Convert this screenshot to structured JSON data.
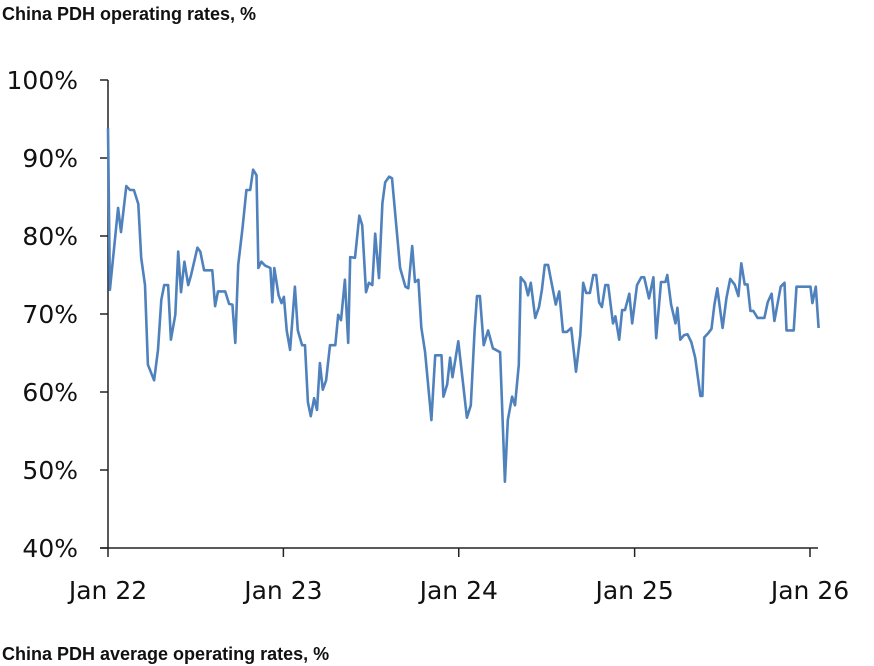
{
  "title": "China PDH operating rates, %",
  "footer_title": "China PDH average operating rates, %",
  "chart_data": {
    "type": "line",
    "title": "China PDH operating rates, %",
    "xlabel": "",
    "ylabel": "",
    "ylim": [
      40,
      100
    ],
    "xlim": [
      "2022-01-01",
      "2026-01-01"
    ],
    "y_ticks": [
      "40%",
      "50%",
      "60%",
      "70%",
      "80%",
      "90%",
      "100%"
    ],
    "y_tick_values": [
      40,
      50,
      60,
      70,
      80,
      90,
      100
    ],
    "x_ticks": [
      "Jan 22",
      "Jan 23",
      "Jan 24",
      "Jan 25",
      "Jan 26"
    ],
    "x_tick_dates": [
      "2022-01-01",
      "2023-01-01",
      "2024-01-01",
      "2025-01-01",
      "2026-01-01"
    ],
    "grid": false,
    "legend": "none",
    "color": "#4f81bd",
    "series": [
      {
        "points": [
          [
            "2022-01-01",
            93.8
          ],
          [
            "2022-01-05",
            73.1
          ],
          [
            "2022-01-22",
            83.6
          ],
          [
            "2022-01-28",
            80.5
          ],
          [
            "2022-02-08",
            86.4
          ],
          [
            "2022-02-16",
            85.9
          ],
          [
            "2022-02-24",
            85.9
          ],
          [
            "2022-03-05",
            84.1
          ],
          [
            "2022-03-11",
            77.2
          ],
          [
            "2022-03-19",
            73.7
          ],
          [
            "2022-03-25",
            63.5
          ],
          [
            "2022-04-07",
            61.5
          ],
          [
            "2022-04-15",
            65.4
          ],
          [
            "2022-04-22",
            71.8
          ],
          [
            "2022-04-28",
            73.7
          ],
          [
            "2022-05-06",
            73.7
          ],
          [
            "2022-05-12",
            66.7
          ],
          [
            "2022-05-21",
            69.9
          ],
          [
            "2022-05-27",
            78.0
          ],
          [
            "2022-06-02",
            72.8
          ],
          [
            "2022-06-09",
            76.7
          ],
          [
            "2022-06-17",
            73.7
          ],
          [
            "2022-06-23",
            75.0
          ],
          [
            "2022-07-06",
            78.5
          ],
          [
            "2022-07-12",
            78.0
          ],
          [
            "2022-07-20",
            75.6
          ],
          [
            "2022-08-06",
            75.6
          ],
          [
            "2022-08-12",
            71.0
          ],
          [
            "2022-08-18",
            72.9
          ],
          [
            "2022-09-02",
            72.9
          ],
          [
            "2022-09-10",
            71.3
          ],
          [
            "2022-09-17",
            71.2
          ],
          [
            "2022-09-23",
            66.3
          ],
          [
            "2022-09-29",
            76.3
          ],
          [
            "2022-10-08",
            81.0
          ],
          [
            "2022-10-16",
            85.9
          ],
          [
            "2022-10-24",
            85.9
          ],
          [
            "2022-10-30",
            88.5
          ],
          [
            "2022-11-06",
            87.8
          ],
          [
            "2022-11-10",
            75.9
          ],
          [
            "2022-11-16",
            76.7
          ],
          [
            "2022-11-24",
            76.2
          ],
          [
            "2022-12-05",
            75.9
          ],
          [
            "2022-12-09",
            71.5
          ],
          [
            "2022-12-13",
            75.9
          ],
          [
            "2022-12-22",
            72.4
          ],
          [
            "2022-12-28",
            71.4
          ],
          [
            "2023-01-02",
            72.2
          ],
          [
            "2023-01-08",
            67.9
          ],
          [
            "2023-01-15",
            65.4
          ],
          [
            "2023-01-25",
            73.5
          ],
          [
            "2023-01-31",
            67.9
          ],
          [
            "2023-02-09",
            66.0
          ],
          [
            "2023-02-15",
            66.0
          ],
          [
            "2023-02-21",
            58.7
          ],
          [
            "2023-02-27",
            56.9
          ],
          [
            "2023-03-06",
            59.2
          ],
          [
            "2023-03-12",
            57.7
          ],
          [
            "2023-03-18",
            63.7
          ],
          [
            "2023-03-24",
            60.3
          ],
          [
            "2023-03-31",
            61.5
          ],
          [
            "2023-04-08",
            66.0
          ],
          [
            "2023-04-19",
            66.0
          ],
          [
            "2023-04-25",
            69.9
          ],
          [
            "2023-05-01",
            69.2
          ],
          [
            "2023-05-09",
            74.4
          ],
          [
            "2023-05-16",
            66.3
          ],
          [
            "2023-05-20",
            77.3
          ],
          [
            "2023-05-30",
            77.2
          ],
          [
            "2023-06-08",
            82.6
          ],
          [
            "2023-06-14",
            81.4
          ],
          [
            "2023-06-22",
            72.8
          ],
          [
            "2023-06-28",
            74.0
          ],
          [
            "2023-07-05",
            73.7
          ],
          [
            "2023-07-11",
            80.3
          ],
          [
            "2023-07-19",
            74.6
          ],
          [
            "2023-07-26",
            84.2
          ],
          [
            "2023-08-01",
            86.9
          ],
          [
            "2023-08-09",
            87.6
          ],
          [
            "2023-08-15",
            87.4
          ],
          [
            "2023-08-20",
            84.0
          ],
          [
            "2023-08-28",
            78.6
          ],
          [
            "2023-09-01",
            75.9
          ],
          [
            "2023-09-12",
            73.5
          ],
          [
            "2023-09-18",
            73.3
          ],
          [
            "2023-09-26",
            78.7
          ],
          [
            "2023-10-02",
            74.1
          ],
          [
            "2023-10-09",
            74.4
          ],
          [
            "2023-10-15",
            68.3
          ],
          [
            "2023-10-23",
            65.1
          ],
          [
            "2023-11-05",
            56.4
          ],
          [
            "2023-11-13",
            64.7
          ],
          [
            "2023-11-26",
            64.7
          ],
          [
            "2023-11-30",
            59.4
          ],
          [
            "2023-12-08",
            61.0
          ],
          [
            "2023-12-14",
            64.4
          ],
          [
            "2023-12-19",
            61.9
          ],
          [
            "2023-12-31",
            66.5
          ],
          [
            "2024-01-18",
            56.7
          ],
          [
            "2024-01-26",
            58.3
          ],
          [
            "2024-02-03",
            67.9
          ],
          [
            "2024-02-08",
            72.3
          ],
          [
            "2024-02-14",
            72.3
          ],
          [
            "2024-02-22",
            66.0
          ],
          [
            "2024-03-02",
            67.9
          ],
          [
            "2024-03-12",
            65.6
          ],
          [
            "2024-03-27",
            65.1
          ],
          [
            "2024-04-06",
            48.5
          ],
          [
            "2024-04-12",
            56.4
          ],
          [
            "2024-04-21",
            59.4
          ],
          [
            "2024-04-27",
            58.3
          ],
          [
            "2024-05-05",
            63.5
          ],
          [
            "2024-05-09",
            74.7
          ],
          [
            "2024-05-18",
            74.0
          ],
          [
            "2024-05-24",
            72.4
          ],
          [
            "2024-05-30",
            74.0
          ],
          [
            "2024-06-08",
            69.5
          ],
          [
            "2024-06-16",
            70.9
          ],
          [
            "2024-06-22",
            73.1
          ],
          [
            "2024-06-28",
            76.3
          ],
          [
            "2024-07-05",
            76.3
          ],
          [
            "2024-07-13",
            73.7
          ],
          [
            "2024-07-21",
            71.2
          ],
          [
            "2024-07-28",
            72.9
          ],
          [
            "2024-08-05",
            67.7
          ],
          [
            "2024-08-13",
            67.7
          ],
          [
            "2024-08-22",
            68.2
          ],
          [
            "2024-09-01",
            62.6
          ],
          [
            "2024-09-10",
            67.3
          ],
          [
            "2024-09-16",
            74.0
          ],
          [
            "2024-09-22",
            72.7
          ],
          [
            "2024-09-30",
            72.7
          ],
          [
            "2024-10-07",
            75.0
          ],
          [
            "2024-10-13",
            75.0
          ],
          [
            "2024-10-19",
            71.5
          ],
          [
            "2024-10-25",
            70.9
          ],
          [
            "2024-11-01",
            73.7
          ],
          [
            "2024-11-07",
            73.7
          ],
          [
            "2024-11-17",
            68.8
          ],
          [
            "2024-11-22",
            69.7
          ],
          [
            "2024-11-30",
            66.7
          ],
          [
            "2024-12-06",
            70.5
          ],
          [
            "2024-12-12",
            70.5
          ],
          [
            "2024-12-21",
            72.6
          ],
          [
            "2024-12-27",
            68.8
          ],
          [
            "2025-01-06",
            73.7
          ],
          [
            "2025-01-15",
            74.7
          ],
          [
            "2025-01-21",
            74.7
          ],
          [
            "2025-01-31",
            72.0
          ],
          [
            "2025-02-09",
            74.7
          ],
          [
            "2025-02-15",
            66.9
          ],
          [
            "2025-02-25",
            74.1
          ],
          [
            "2025-03-06",
            74.1
          ],
          [
            "2025-03-10",
            75.0
          ],
          [
            "2025-03-18",
            71.2
          ],
          [
            "2025-03-27",
            68.8
          ],
          [
            "2025-03-31",
            70.8
          ],
          [
            "2025-04-06",
            66.7
          ],
          [
            "2025-04-14",
            67.3
          ],
          [
            "2025-04-21",
            67.4
          ],
          [
            "2025-04-29",
            66.4
          ],
          [
            "2025-05-07",
            64.4
          ],
          [
            "2025-05-18",
            59.5
          ],
          [
            "2025-05-22",
            59.5
          ],
          [
            "2025-05-26",
            67.0
          ],
          [
            "2025-06-04",
            67.6
          ],
          [
            "2025-06-10",
            68.1
          ],
          [
            "2025-06-16",
            71.2
          ],
          [
            "2025-06-22",
            73.3
          ],
          [
            "2025-07-03",
            68.2
          ],
          [
            "2025-07-11",
            72.0
          ],
          [
            "2025-07-19",
            74.5
          ],
          [
            "2025-07-28",
            73.8
          ],
          [
            "2025-08-05",
            72.3
          ],
          [
            "2025-08-11",
            76.5
          ],
          [
            "2025-08-18",
            73.8
          ],
          [
            "2025-08-24",
            73.8
          ],
          [
            "2025-08-30",
            70.4
          ],
          [
            "2025-09-05",
            70.4
          ],
          [
            "2025-09-14",
            69.5
          ],
          [
            "2025-09-28",
            69.5
          ],
          [
            "2025-10-05",
            71.5
          ],
          [
            "2025-10-13",
            72.6
          ],
          [
            "2025-10-19",
            69.1
          ],
          [
            "2025-11-01",
            73.5
          ],
          [
            "2025-11-09",
            74.0
          ],
          [
            "2025-11-13",
            67.9
          ],
          [
            "2025-11-28",
            67.9
          ],
          [
            "2025-12-04",
            73.5
          ],
          [
            "2026-01-02",
            73.5
          ],
          [
            "2026-01-06",
            71.4
          ],
          [
            "2026-01-13",
            73.5
          ],
          [
            "2026-01-19",
            68.2
          ]
        ]
      }
    ]
  }
}
